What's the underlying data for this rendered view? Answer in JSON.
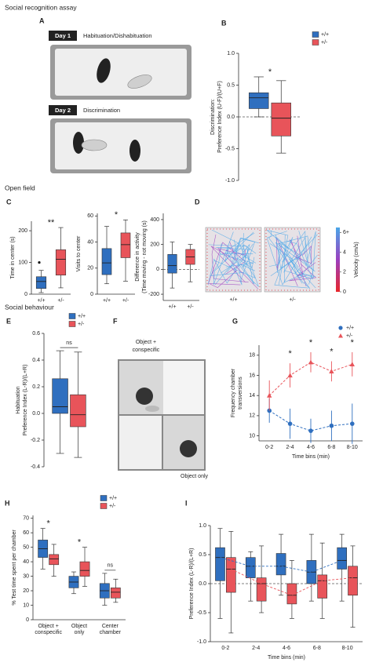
{
  "sections": [
    "Social recognition assay",
    "Open field",
    "Social behaviour"
  ],
  "panel_labels": [
    "A",
    "B",
    "C",
    "D",
    "E",
    "F",
    "G",
    "H",
    "I"
  ],
  "panel_A": {
    "days": [
      "Day 1",
      "Day 2"
    ],
    "phases": [
      "Habituation/Dishabituation",
      "Discrimination"
    ]
  },
  "panel_F": {
    "top_label": [
      "Object +",
      "conspecific"
    ],
    "bottom_label": "Object only"
  },
  "chart_data": [
    {
      "type": "box",
      "ylabel": [
        "Discrimination:",
        "Preference Index (U-F)/(U+F)"
      ],
      "ylim": [
        -1,
        1
      ],
      "yticks": [
        {
          "value": -1,
          "label": "-1.0"
        },
        -0.5,
        {
          "value": 0,
          "label": "0.0"
        },
        0.5,
        {
          "value": 1,
          "label": "1.0"
        }
      ],
      "zero_line": true,
      "legend": "outside right",
      "annotation": "*",
      "series": [
        {
          "name": "+/+",
          "color": "#2f6fbf",
          "values": [
            {
              "min": 0,
              "q1": 0.13,
              "median": 0.3,
              "q3": 0.38,
              "max": 0.63
            }
          ]
        },
        {
          "name": "+/-",
          "color": "#e8545a",
          "values": [
            {
              "min": -0.57,
              "q1": -0.3,
              "median": -0.02,
              "q3": 0.22,
              "max": 0.57
            }
          ]
        }
      ]
    },
    {
      "type": "box",
      "ylabel": [
        "Time in center (s)"
      ],
      "ylim": [
        0,
        230
      ],
      "yticks": [
        0,
        100,
        200
      ],
      "annotation": "**",
      "categories": [
        "+/+",
        "+/-"
      ],
      "colors": [
        "#2f6fbf",
        "#e8545a"
      ],
      "values": [
        {
          "min": 5,
          "q1": 18,
          "median": 40,
          "q3": 55,
          "max": 75,
          "outliers": [
            100
          ]
        },
        {
          "min": 20,
          "q1": 60,
          "median": 110,
          "q3": 140,
          "max": 210
        }
      ]
    },
    {
      "type": "box",
      "ylabel": [
        "Visits to center"
      ],
      "ylim": [
        0,
        62
      ],
      "yticks": [
        0,
        20,
        40,
        60
      ],
      "annotation": "*",
      "categories": [
        "+/+",
        "+/-"
      ],
      "colors": [
        "#2f6fbf",
        "#e8545a"
      ],
      "values": [
        {
          "min": 8,
          "q1": 15,
          "median": 24,
          "q3": 35,
          "max": 52
        },
        {
          "min": 10,
          "q1": 28,
          "median": 38,
          "q3": 47,
          "max": 57
        }
      ]
    },
    {
      "type": "box",
      "ylabel": [
        "Difference in activity",
        "(Time moving - not moving (s)"
      ],
      "ylim": [
        -250,
        450
      ],
      "yticks": [
        -200,
        0,
        200,
        400
      ],
      "zero_line": true,
      "categories": [
        "+/+",
        "+/-"
      ],
      "colors": [
        "#2f6fbf",
        "#e8545a"
      ],
      "values": [
        {
          "min": -150,
          "q1": -30,
          "median": 30,
          "q3": 120,
          "max": 220
        },
        {
          "min": -100,
          "q1": 40,
          "median": 100,
          "q3": 160,
          "max": 200
        }
      ]
    },
    {
      "type": "tracks",
      "categories": [
        "+/+",
        "+/-"
      ],
      "colorbar": {
        "label": "Velocity (cm/s)",
        "lim": [
          0,
          6.5
        ],
        "ticks": [
          0,
          2,
          4,
          {
            "value": 6,
            "label": "6+"
          }
        ],
        "colors": [
          "#e8262a",
          "#9b3fc0",
          "#4aa6e8"
        ]
      }
    },
    {
      "type": "box",
      "ylabel": [
        "Habituation",
        "Preference Index (L-R)/(L+R)"
      ],
      "ylim": [
        -0.4,
        0.6
      ],
      "yticks": [
        -0.4,
        -0.2,
        {
          "value": 0,
          "label": "0.0"
        },
        0.2,
        0.4,
        0.6
      ],
      "legend": "upper right",
      "annotation": "ns",
      "series": [
        {
          "name": "+/+",
          "color": "#2f6fbf",
          "values": [
            {
              "min": -0.3,
              "q1": 0,
              "median": 0.05,
              "q3": 0.26,
              "max": 0.47
            }
          ]
        },
        {
          "name": "+/-",
          "color": "#e8545a",
          "values": [
            {
              "min": -0.33,
              "q1": -0.1,
              "median": -0.01,
              "q3": 0.14,
              "max": 0.46
            }
          ]
        }
      ]
    },
    {
      "type": "line",
      "categories": [
        "0-2",
        "2-4",
        "4-6",
        "6-8",
        "8-10"
      ],
      "xlabel": "Time bins (min)",
      "ylabel": [
        "Frequency chamber",
        "transversions"
      ],
      "ylim": [
        9.5,
        19
      ],
      "yticks": [
        10,
        12,
        14,
        16,
        18
      ],
      "legend": "upper right",
      "annotations": [
        null,
        "*",
        "*",
        "*",
        "*"
      ],
      "series": [
        {
          "name": "+/+",
          "color": "#2f6fbf",
          "marker": "circle",
          "values": [
            12.5,
            11.2,
            10.5,
            11.0,
            11.2
          ],
          "errors": [
            1.2,
            1.5,
            1.2,
            1.5,
            2.0
          ]
        },
        {
          "name": "+/-",
          "color": "#e8545a",
          "marker": "triangle",
          "values": [
            14,
            16,
            17.3,
            16.4,
            17.1
          ],
          "errors": [
            1.5,
            1.2,
            1.0,
            1.0,
            1.2
          ]
        }
      ]
    },
    {
      "type": "box",
      "categories": [
        [
          "Object +",
          "conspecific"
        ],
        [
          "Object",
          "only"
        ],
        [
          "Center",
          "chamber"
        ]
      ],
      "ylabel": [
        "% Test time spent per chamber"
      ],
      "ylim": [
        0,
        72
      ],
      "yticks": [
        0,
        10,
        20,
        30,
        40,
        50,
        60,
        70
      ],
      "legend": "upper right",
      "annotations": [
        "*",
        "*",
        "ns"
      ],
      "series": [
        {
          "name": "+/+",
          "color": "#2f6fbf",
          "values": [
            {
              "min": 35,
              "q1": 43,
              "median": 49,
              "q3": 55,
              "max": 63
            },
            {
              "min": 18,
              "q1": 22,
              "median": 26,
              "q3": 30,
              "max": 33
            },
            {
              "min": 10,
              "q1": 15,
              "median": 20,
              "q3": 25,
              "max": 32
            }
          ]
        },
        {
          "name": "+/-",
          "color": "#e8545a",
          "values": [
            {
              "min": 30,
              "q1": 38,
              "median": 42,
              "q3": 45,
              "max": 52
            },
            {
              "min": 23,
              "q1": 30,
              "median": 34,
              "q3": 40,
              "max": 50
            },
            {
              "min": 12,
              "q1": 15,
              "median": 19,
              "q3": 22,
              "max": 28
            }
          ]
        }
      ]
    },
    {
      "type": "box",
      "categories": [
        "0-2",
        "2-4",
        "4-6",
        "6-8",
        "8-10"
      ],
      "xlabel": "Time bins (min)",
      "ylabel": [
        "Preference Index (L-R)/(L+R)"
      ],
      "ylim": [
        -1,
        1
      ],
      "yticks": [
        {
          "value": -1,
          "label": "-1.0"
        },
        -0.5,
        {
          "value": 0,
          "label": "0.0"
        },
        0.5,
        {
          "value": 1,
          "label": "1.0"
        }
      ],
      "zero_line": true,
      "median_line": true,
      "series": [
        {
          "name": "+/+",
          "color": "#2f6fbf",
          "values": [
            {
              "min": -0.6,
              "q1": 0.05,
              "median": 0.45,
              "q3": 0.62,
              "max": 0.95
            },
            {
              "min": -0.3,
              "q1": 0.1,
              "median": 0.3,
              "q3": 0.45,
              "max": 0.55
            },
            {
              "min": -0.2,
              "q1": 0.15,
              "median": 0.3,
              "q3": 0.52,
              "max": 0.85
            },
            {
              "min": -0.3,
              "q1": 0,
              "median": 0.2,
              "q3": 0.4,
              "max": 0.85
            },
            {
              "min": -0.3,
              "q1": 0.25,
              "median": 0.4,
              "q3": 0.62,
              "max": 0.85
            }
          ]
        },
        {
          "name": "+/-",
          "color": "#e8545a",
          "values": [
            {
              "min": -0.85,
              "q1": -0.15,
              "median": 0.25,
              "q3": 0.45,
              "max": 0.9
            },
            {
              "min": -0.5,
              "q1": -0.3,
              "median": 0,
              "q3": 0.1,
              "max": 0.65
            },
            {
              "min": -0.6,
              "q1": -0.35,
              "median": -0.2,
              "q3": 0,
              "max": 0.4
            },
            {
              "min": -0.6,
              "q1": -0.25,
              "median": 0.05,
              "q3": 0.15,
              "max": 0.7
            },
            {
              "min": -0.75,
              "q1": -0.2,
              "median": 0.1,
              "q3": 0.3,
              "max": 0.65
            }
          ]
        }
      ]
    }
  ]
}
